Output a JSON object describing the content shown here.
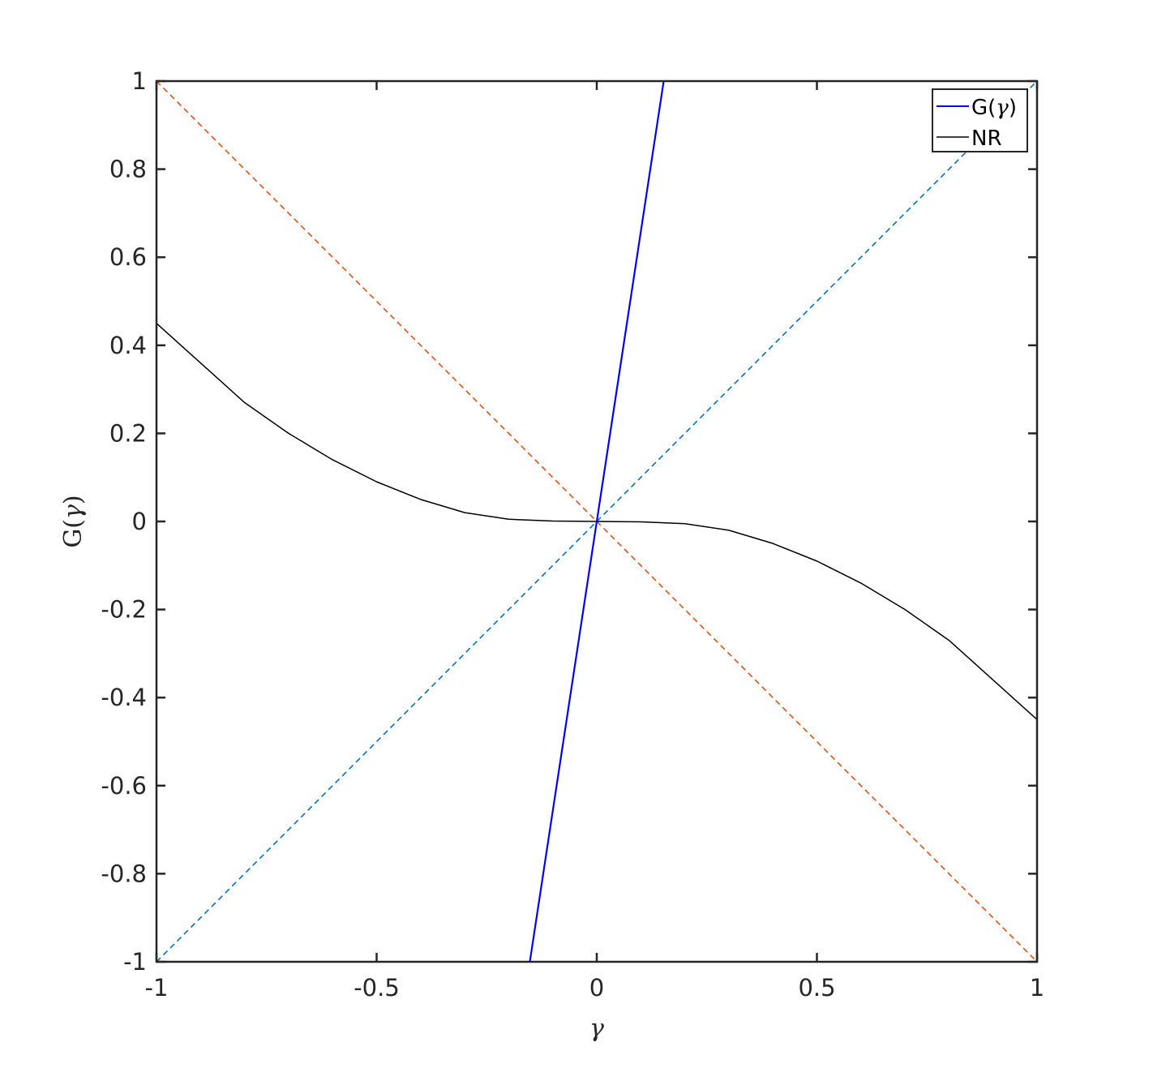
{
  "chart_data": {
    "type": "line",
    "title": "",
    "xlabel": "γ",
    "ylabel_prefix": "G(",
    "ylabel_symbol": "γ",
    "ylabel_suffix": ")",
    "xlim": [
      -1,
      1
    ],
    "ylim": [
      -1,
      1
    ],
    "grid": false,
    "legend_position": "top-right",
    "x_ticks": [
      -1,
      -0.5,
      0,
      0.5,
      1
    ],
    "x_tick_labels": [
      "-1",
      "-0.5",
      "0",
      "0.5",
      "1"
    ],
    "y_ticks": [
      -1,
      -0.8,
      -0.6,
      -0.4,
      -0.2,
      0,
      0.2,
      0.4,
      0.6,
      0.8,
      1
    ],
    "y_tick_labels": [
      "-1",
      "-0.8",
      "-0.6",
      "-0.4",
      "-0.2",
      "0",
      "0.2",
      "0.4",
      "0.6",
      "0.8",
      "1"
    ],
    "series": [
      {
        "name": "G(γ)",
        "legend_prefix": "G(",
        "legend_symbol": "γ",
        "legend_suffix": ")",
        "color": "#0000ff",
        "style": "solid",
        "in_legend": true,
        "x": [
          -0.152,
          0,
          0.152
        ],
        "y": [
          -1,
          0,
          1
        ]
      },
      {
        "name": "NR",
        "color": "#000000",
        "style": "solid",
        "in_legend": true,
        "x": [
          -1.0,
          -0.9,
          -0.8,
          -0.7,
          -0.6,
          -0.5,
          -0.4,
          -0.3,
          -0.2,
          -0.1,
          0.0,
          0.1,
          0.2,
          0.3,
          0.4,
          0.5,
          0.6,
          0.7,
          0.8,
          0.9,
          1.0
        ],
        "y": [
          0.45,
          0.36,
          0.27,
          0.2,
          0.14,
          0.09,
          0.05,
          0.02,
          0.005,
          0.001,
          0.0,
          -0.001,
          -0.005,
          -0.02,
          -0.05,
          -0.09,
          -0.14,
          -0.2,
          -0.27,
          -0.36,
          -0.45
        ]
      },
      {
        "color": "#0072bd",
        "style": "dashed",
        "in_legend": false,
        "x": [
          -1,
          1
        ],
        "y": [
          -1,
          1
        ]
      },
      {
        "color": "#d95319",
        "style": "dashed",
        "in_legend": false,
        "x": [
          -1,
          1
        ],
        "y": [
          1,
          -1
        ]
      }
    ]
  }
}
